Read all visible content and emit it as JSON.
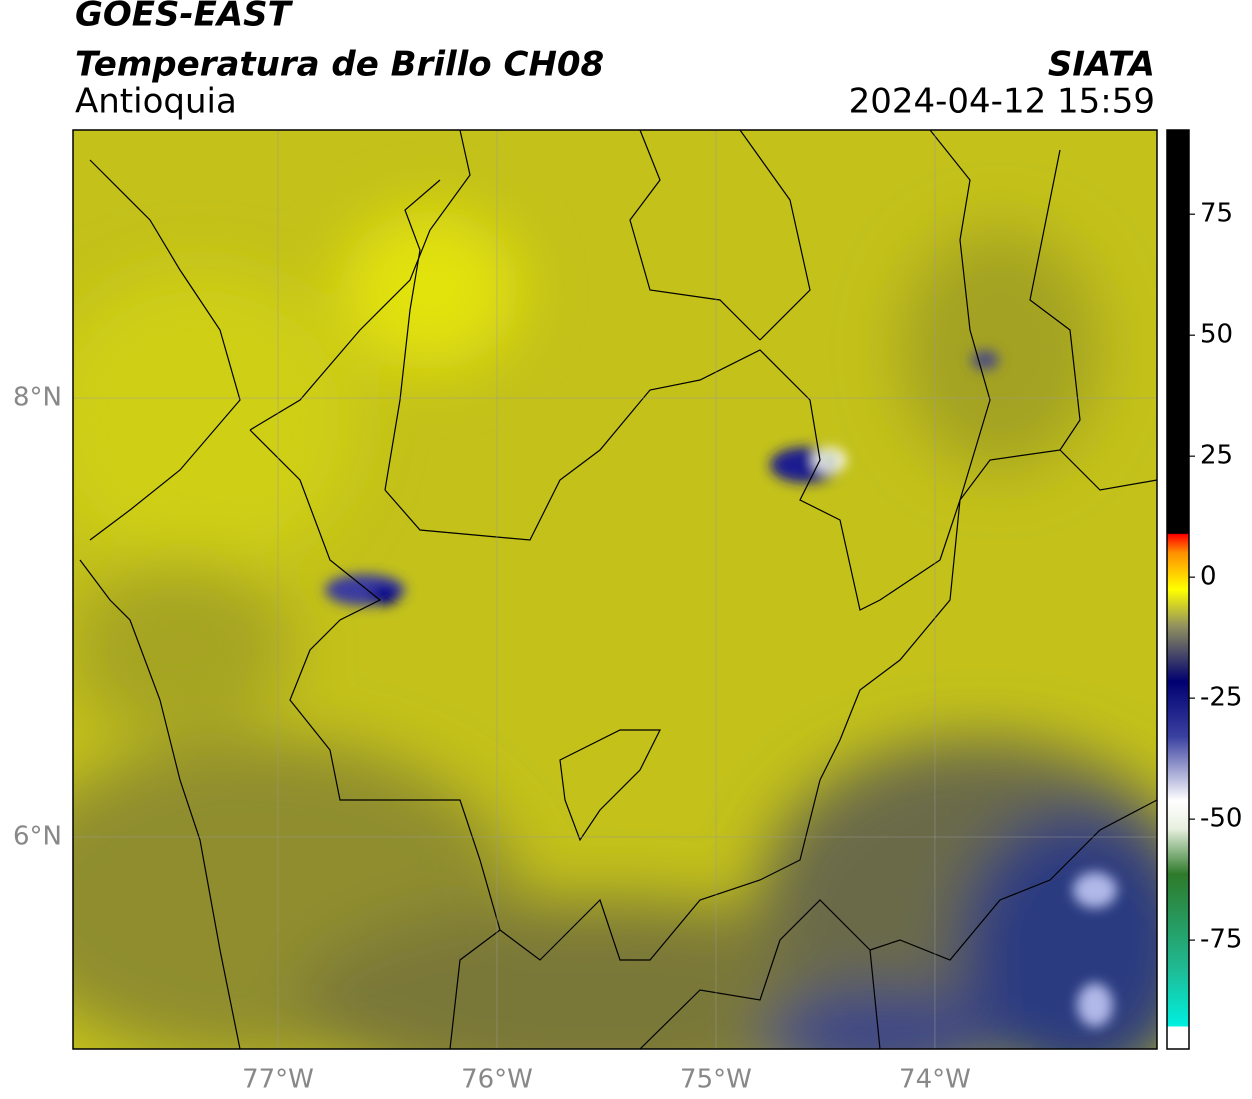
{
  "header": {
    "title": "GOES-EAST",
    "subtitle": "Temperatura de Brillo CH08",
    "region": "Antioquia",
    "source": "SIATA",
    "datetime": "2024-04-12 15:59"
  },
  "map": {
    "lonlim": [
      -77.936,
      -72.986
    ],
    "latlim": [
      5.034,
      9.221
    ],
    "lon_ticks": [
      {
        "value": -77,
        "label": "77°W"
      },
      {
        "value": -76,
        "label": "76°W"
      },
      {
        "value": -75,
        "label": "75°W"
      },
      {
        "value": -74,
        "label": "74°W"
      }
    ],
    "lat_ticks": [
      {
        "value": 8,
        "label": "8°N"
      },
      {
        "value": 6,
        "label": "6°N"
      }
    ]
  },
  "colorbar": {
    "lim": [
      -97.5,
      92.4
    ],
    "ticks": [
      75,
      50,
      25,
      0,
      -25,
      -50,
      -75
    ]
  }
}
